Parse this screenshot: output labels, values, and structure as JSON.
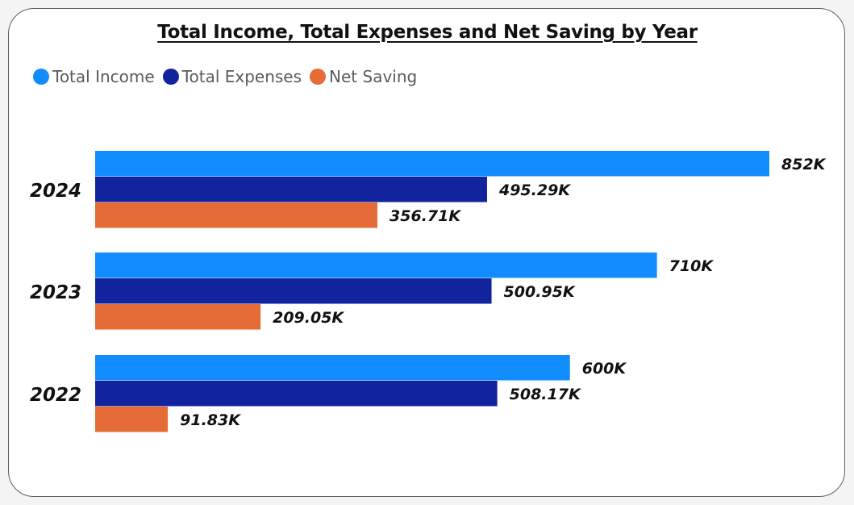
{
  "chart_data": {
    "type": "bar",
    "orientation": "horizontal",
    "title": "Total Income, Total Expenses and Net Saving by Year",
    "legend_position": "top-left",
    "grid": false,
    "categories": [
      "2024",
      "2023",
      "2022"
    ],
    "series": [
      {
        "name": "Total Income",
        "color": "#118dff",
        "values": [
          852000,
          710000,
          600000
        ],
        "labels": [
          "852K",
          "710K",
          "600K"
        ]
      },
      {
        "name": "Total Expenses",
        "color": "#12239e",
        "values": [
          495290,
          500950,
          508170
        ],
        "labels": [
          "495.29K",
          "500.95K",
          "508.17K"
        ]
      },
      {
        "name": "Net Saving",
        "color": "#e66c37",
        "values": [
          356710,
          209050,
          91830
        ],
        "labels": [
          "356.71K",
          "209.05K",
          "91.83K"
        ]
      }
    ],
    "xlim": [
      0,
      852000
    ]
  }
}
